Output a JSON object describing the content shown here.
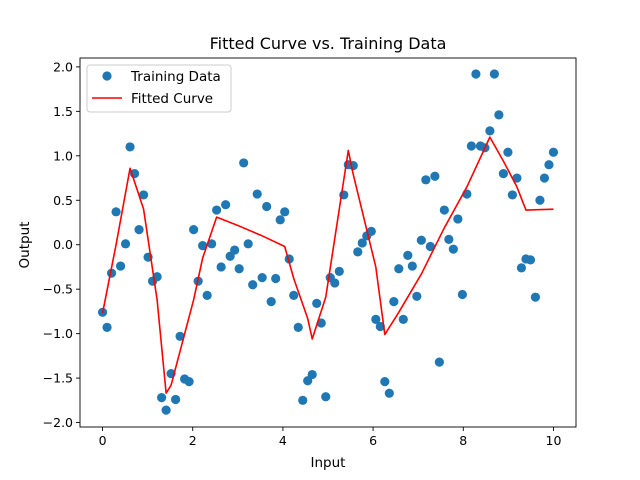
{
  "chart_data": {
    "type": "scatter",
    "title": "Fitted Curve vs. Training Data",
    "xlabel": "Input",
    "ylabel": "Output",
    "xlim": [
      -0.5,
      10.5
    ],
    "ylim": [
      -2.05,
      2.1
    ],
    "xticks": [
      0,
      2,
      4,
      6,
      8,
      10
    ],
    "xtick_labels": [
      "0",
      "2",
      "4",
      "6",
      "8",
      "10"
    ],
    "yticks": [
      -2.0,
      -1.5,
      -1.0,
      -0.5,
      0.0,
      0.5,
      1.0,
      1.5,
      2.0
    ],
    "ytick_labels": [
      "−2.0",
      "−1.5",
      "−1.0",
      "−0.5",
      "0.0",
      "0.5",
      "1.0",
      "1.5",
      "2.0"
    ],
    "grid": false,
    "legend": "top-left",
    "series": [
      {
        "name": "Training Data",
        "kind": "scatter",
        "color": "#1f77b4",
        "points": [
          [
            0.0,
            -0.76
          ],
          [
            0.1,
            -0.93
          ],
          [
            0.2,
            -0.32
          ],
          [
            0.3,
            0.37
          ],
          [
            0.4,
            -0.24
          ],
          [
            0.51,
            0.01
          ],
          [
            0.61,
            1.1
          ],
          [
            0.71,
            0.8
          ],
          [
            0.81,
            0.17
          ],
          [
            0.91,
            0.56
          ],
          [
            1.01,
            -0.14
          ],
          [
            1.11,
            -0.41
          ],
          [
            1.21,
            -0.36
          ],
          [
            1.31,
            -1.72
          ],
          [
            1.41,
            -1.86
          ],
          [
            1.52,
            -1.45
          ],
          [
            1.62,
            -1.74
          ],
          [
            1.72,
            -1.03
          ],
          [
            1.82,
            -1.51
          ],
          [
            1.92,
            -1.54
          ],
          [
            2.02,
            0.17
          ],
          [
            2.12,
            -0.41
          ],
          [
            2.22,
            -0.01
          ],
          [
            2.32,
            -0.57
          ],
          [
            2.42,
            0.01
          ],
          [
            2.53,
            0.39
          ],
          [
            2.63,
            -0.25
          ],
          [
            2.73,
            0.45
          ],
          [
            2.83,
            -0.13
          ],
          [
            2.93,
            -0.06
          ],
          [
            3.03,
            -0.27
          ],
          [
            3.13,
            0.92
          ],
          [
            3.23,
            0.01
          ],
          [
            3.33,
            -0.45
          ],
          [
            3.43,
            0.57
          ],
          [
            3.54,
            -0.37
          ],
          [
            3.64,
            0.43
          ],
          [
            3.74,
            -0.64
          ],
          [
            3.84,
            -0.38
          ],
          [
            3.94,
            0.28
          ],
          [
            4.04,
            0.37
          ],
          [
            4.14,
            -0.16
          ],
          [
            4.24,
            -0.57
          ],
          [
            4.34,
            -0.93
          ],
          [
            4.44,
            -1.75
          ],
          [
            4.55,
            -1.53
          ],
          [
            4.65,
            -1.46
          ],
          [
            4.75,
            -0.66
          ],
          [
            4.85,
            -0.88
          ],
          [
            4.95,
            -1.71
          ],
          [
            5.05,
            -0.37
          ],
          [
            5.15,
            -0.43
          ],
          [
            5.25,
            -0.3
          ],
          [
            5.35,
            0.56
          ],
          [
            5.45,
            0.9
          ],
          [
            5.56,
            0.89
          ],
          [
            5.66,
            -0.08
          ],
          [
            5.76,
            0.02
          ],
          [
            5.86,
            0.1
          ],
          [
            5.96,
            0.15
          ],
          [
            6.06,
            -0.84
          ],
          [
            6.16,
            -0.92
          ],
          [
            6.26,
            -1.54
          ],
          [
            6.36,
            -1.67
          ],
          [
            6.46,
            -0.64
          ],
          [
            6.57,
            -0.27
          ],
          [
            6.67,
            -0.84
          ],
          [
            6.77,
            -0.12
          ],
          [
            6.87,
            -0.24
          ],
          [
            6.97,
            -0.58
          ],
          [
            7.07,
            0.05
          ],
          [
            7.17,
            0.73
          ],
          [
            7.27,
            -0.02
          ],
          [
            7.37,
            0.77
          ],
          [
            7.47,
            -1.32
          ],
          [
            7.58,
            0.39
          ],
          [
            7.68,
            0.06
          ],
          [
            7.78,
            -0.05
          ],
          [
            7.88,
            0.29
          ],
          [
            7.98,
            -0.56
          ],
          [
            8.08,
            0.57
          ],
          [
            8.18,
            1.11
          ],
          [
            8.28,
            1.92
          ],
          [
            8.38,
            1.11
          ],
          [
            8.48,
            1.09
          ],
          [
            8.59,
            1.28
          ],
          [
            8.69,
            1.92
          ],
          [
            8.79,
            1.46
          ],
          [
            8.89,
            0.8
          ],
          [
            8.99,
            1.04
          ],
          [
            9.09,
            0.56
          ],
          [
            9.19,
            0.75
          ],
          [
            9.29,
            -0.26
          ],
          [
            9.39,
            -0.16
          ],
          [
            9.49,
            -0.17
          ],
          [
            9.6,
            -0.59
          ],
          [
            9.7,
            0.5
          ],
          [
            9.8,
            0.75
          ],
          [
            9.9,
            0.9
          ],
          [
            10.0,
            1.04
          ]
        ]
      },
      {
        "name": "Fitted Curve",
        "kind": "line",
        "color": "#ff0000",
        "points": [
          [
            0.0,
            -0.77
          ],
          [
            0.3,
            0.0
          ],
          [
            0.61,
            0.86
          ],
          [
            0.91,
            0.4
          ],
          [
            1.21,
            -0.62
          ],
          [
            1.41,
            -1.67
          ],
          [
            1.52,
            -1.58
          ],
          [
            2.02,
            -0.62
          ],
          [
            2.22,
            -0.15
          ],
          [
            2.53,
            0.31
          ],
          [
            3.03,
            0.21
          ],
          [
            3.54,
            0.1
          ],
          [
            4.04,
            -0.02
          ],
          [
            4.24,
            -0.38
          ],
          [
            4.55,
            -0.83
          ],
          [
            4.65,
            -1.06
          ],
          [
            4.95,
            -0.59
          ],
          [
            5.45,
            1.06
          ],
          [
            5.56,
            0.79
          ],
          [
            6.06,
            -0.25
          ],
          [
            6.26,
            -1.01
          ],
          [
            6.57,
            -0.76
          ],
          [
            7.07,
            -0.33
          ],
          [
            7.58,
            0.19
          ],
          [
            8.08,
            0.65
          ],
          [
            8.59,
            1.21
          ],
          [
            8.89,
            0.94
          ],
          [
            9.19,
            0.65
          ],
          [
            9.39,
            0.39
          ],
          [
            10.0,
            0.4
          ]
        ]
      }
    ]
  }
}
